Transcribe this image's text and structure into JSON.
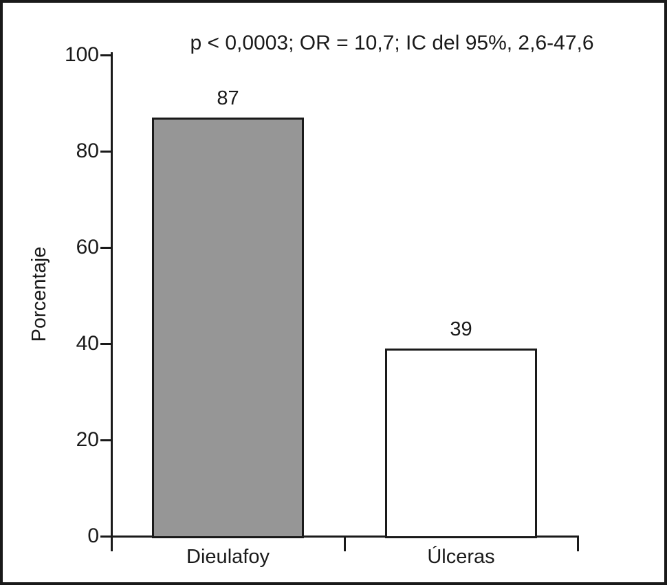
{
  "figure": {
    "title": "p < 0,0003; OR = 10,7; IC del 95%, 2,6-47,6",
    "y_axis_title": "Porcentaje"
  },
  "chart_data": {
    "type": "bar",
    "title": "p < 0,0003; OR = 10,7; IC del 95%, 2,6-47,6",
    "categories": [
      "Dieulafoy",
      "Úlceras"
    ],
    "values": [
      87,
      39
    ],
    "bar_value_labels": [
      "87",
      "39"
    ],
    "bar_fills": [
      "#969696",
      "#ffffff"
    ],
    "xlabel": "",
    "ylabel": "Porcentaje",
    "ylim": [
      0,
      100
    ],
    "yticks": [
      0,
      20,
      40,
      60,
      80,
      100
    ],
    "grid": false,
    "legend_position": "none"
  },
  "colors": {
    "line": "#1a1a1a",
    "text": "#1a1a1a",
    "background": "#ffffff",
    "bar_gray": "#969696",
    "bar_white": "#ffffff"
  }
}
